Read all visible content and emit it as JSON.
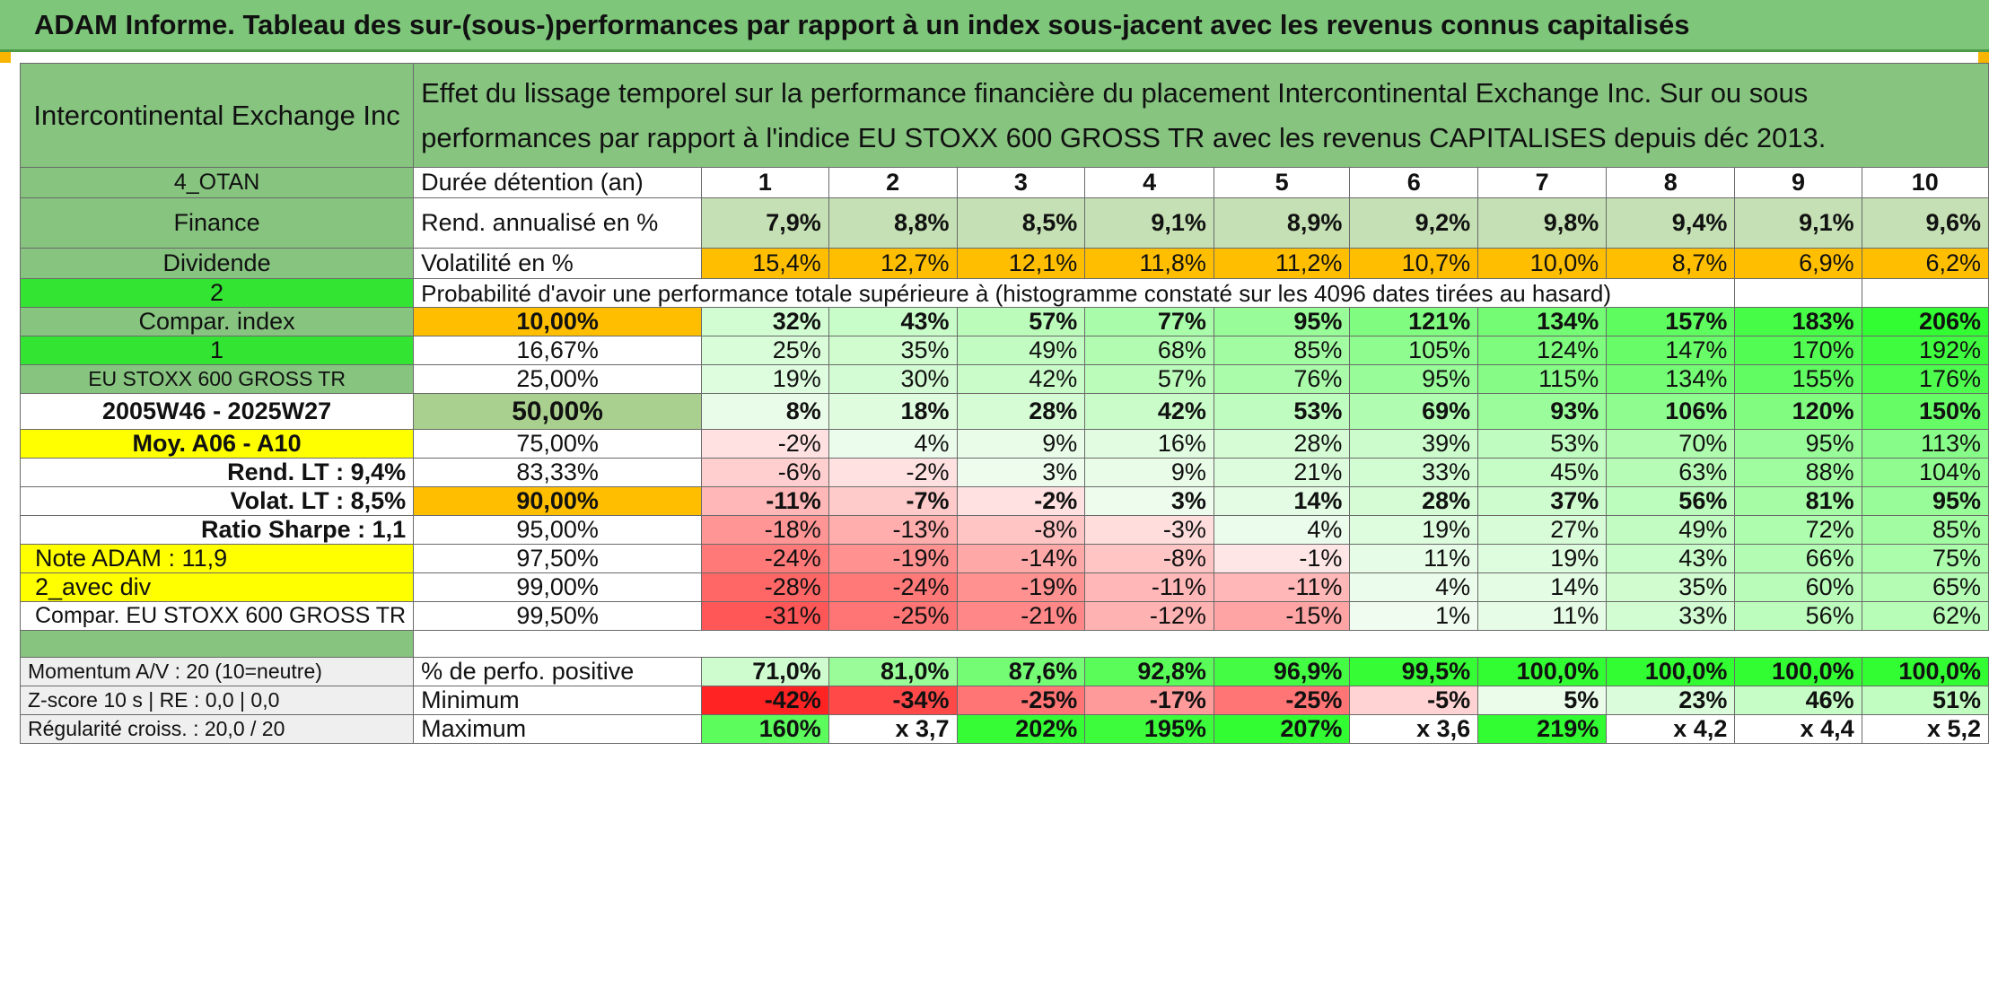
{
  "title": "ADAM Informe. Tableau des sur-(sous-)performances par rapport à un index sous-jacent avec les revenus connus capitalisés",
  "colors": {
    "header_green": "#86c47f",
    "bright_green": "#33e433",
    "yellow": "#ffff00",
    "orange": "#ffbf00",
    "red_text": "#e00000"
  },
  "header": {
    "company": "Intercontinental Exchange Inc",
    "description": "Effet du lissage temporel sur la performance financière du placement Intercontinental Exchange Inc. Sur ou sous performances par rapport à l'indice EU STOXX 600 GROSS TR avec les revenus CAPITALISES depuis déc 2013."
  },
  "summary": {
    "code": "4_OTAN",
    "sector": "Finance",
    "type": "Dividende",
    "durations_label": "Durée détention (an)",
    "durations": [
      "1",
      "2",
      "3",
      "4",
      "5",
      "6",
      "7",
      "8",
      "9",
      "10"
    ],
    "rend_label": "Rend. annualisé en %",
    "rend": [
      "7,9%",
      "8,8%",
      "8,5%",
      "9,1%",
      "8,9%",
      "9,2%",
      "9,8%",
      "9,4%",
      "9,1%",
      "9,6%"
    ],
    "vol_label": "Volatilité en %",
    "vol": [
      "15,4%",
      "12,7%",
      "12,1%",
      "11,8%",
      "11,2%",
      "10,7%",
      "10,0%",
      "8,7%",
      "6,9%",
      "6,2%"
    ]
  },
  "prob": {
    "left_value": "2",
    "caption": "Probabilité d'avoir une performance totale supérieure à (histogramme constaté sur les 4096 dates tirées au hasard)"
  },
  "left_labels": [
    "Compar. index",
    "1",
    "EU STOXX 600 GROSS TR",
    "2005W46 - 2025W27",
    "Moy. A06 - A10",
    "Rend. LT :   9,4%",
    "Volat. LT :   8,5%",
    "Ratio Sharpe :   1,1",
    "Note ADAM : 11,9",
    "2_avec div",
    "Compar. EU STOXX 600 GROSS TR"
  ],
  "percentiles": [
    "10,00%",
    "16,67%",
    "25,00%",
    "50,00%",
    "75,00%",
    "83,33%",
    "90,00%",
    "95,00%",
    "97,50%",
    "99,00%",
    "99,50%"
  ],
  "matrix": [
    [
      "32%",
      "43%",
      "57%",
      "77%",
      "95%",
      "121%",
      "134%",
      "157%",
      "183%",
      "206%"
    ],
    [
      "25%",
      "35%",
      "49%",
      "68%",
      "85%",
      "105%",
      "124%",
      "147%",
      "170%",
      "192%"
    ],
    [
      "19%",
      "30%",
      "42%",
      "57%",
      "76%",
      "95%",
      "115%",
      "134%",
      "155%",
      "176%"
    ],
    [
      "8%",
      "18%",
      "28%",
      "42%",
      "53%",
      "69%",
      "93%",
      "106%",
      "120%",
      "150%"
    ],
    [
      "-2%",
      "4%",
      "9%",
      "16%",
      "28%",
      "39%",
      "53%",
      "70%",
      "95%",
      "113%"
    ],
    [
      "-6%",
      "-2%",
      "3%",
      "9%",
      "21%",
      "33%",
      "45%",
      "63%",
      "88%",
      "104%"
    ],
    [
      "-11%",
      "-7%",
      "-2%",
      "3%",
      "14%",
      "28%",
      "37%",
      "56%",
      "81%",
      "95%"
    ],
    [
      "-18%",
      "-13%",
      "-8%",
      "-3%",
      "4%",
      "19%",
      "27%",
      "49%",
      "72%",
      "85%"
    ],
    [
      "-24%",
      "-19%",
      "-14%",
      "-8%",
      "-1%",
      "11%",
      "19%",
      "43%",
      "66%",
      "75%"
    ],
    [
      "-28%",
      "-24%",
      "-19%",
      "-11%",
      "-11%",
      "4%",
      "14%",
      "35%",
      "60%",
      "65%"
    ],
    [
      "-31%",
      "-25%",
      "-21%",
      "-12%",
      "-15%",
      "1%",
      "11%",
      "33%",
      "56%",
      "62%"
    ]
  ],
  "footer": {
    "momentum": "Momentum A/V : 20 (10=neutre)",
    "zscore": "Z-score 10 s | RE : 0,0 | 0,0",
    "regularite": "Régularité croiss. : 20,0 / 20",
    "pos_label": "% de perfo. positive",
    "pos": [
      "71,0%",
      "81,0%",
      "87,6%",
      "92,8%",
      "96,9%",
      "99,5%",
      "100,0%",
      "100,0%",
      "100,0%",
      "100,0%"
    ],
    "min_label": "Minimum",
    "min": [
      "-42%",
      "-34%",
      "-25%",
      "-17%",
      "-25%",
      "-5%",
      "5%",
      "23%",
      "46%",
      "51%"
    ],
    "max_label": "Maximum",
    "max": [
      "160%",
      "x 3,7",
      "202%",
      "195%",
      "207%",
      "x 3,6",
      "219%",
      "x 4,2",
      "x 4,4",
      "x 5,2"
    ]
  }
}
